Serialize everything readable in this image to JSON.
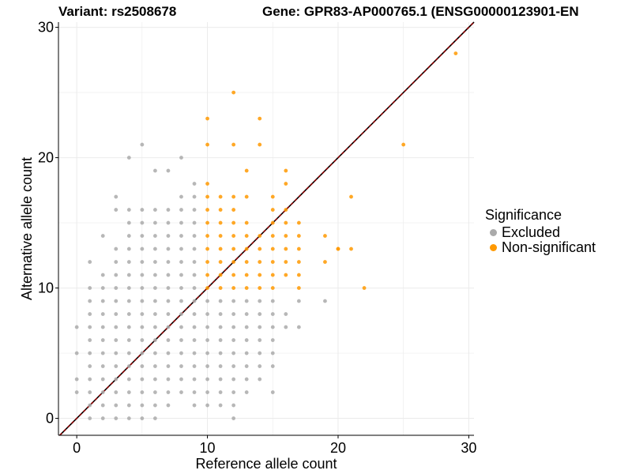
{
  "title_left": "Variant: rs2508678",
  "title_right": "Gene: GPR83-AP000765.1 (ENSG00000123901-EN",
  "chart_data": {
    "type": "scatter",
    "xlabel": "Reference allele count",
    "ylabel": "Alternative allele count",
    "xlim": [
      -1.4,
      30.4
    ],
    "ylim": [
      -1.3,
      30.4
    ],
    "x_ticks": [
      0,
      10,
      20,
      30
    ],
    "y_ticks": [
      0,
      10,
      20,
      30
    ],
    "grid": true,
    "reference_line": "y = x (dashed, dark red)",
    "legend_title": "Significance",
    "legend_placement": "right",
    "series": [
      {
        "name": "Excluded",
        "color": "#aaaaaa",
        "points": [
          [
            0,
            2
          ],
          [
            0,
            3
          ],
          [
            0,
            5
          ],
          [
            0,
            7
          ],
          [
            1,
            0
          ],
          [
            1,
            1
          ],
          [
            1,
            2
          ],
          [
            1,
            3
          ],
          [
            1,
            4
          ],
          [
            1,
            5
          ],
          [
            1,
            6
          ],
          [
            1,
            7
          ],
          [
            1,
            8
          ],
          [
            1,
            9
          ],
          [
            1,
            10
          ],
          [
            1,
            12
          ],
          [
            2,
            0
          ],
          [
            2,
            1
          ],
          [
            2,
            2
          ],
          [
            2,
            3
          ],
          [
            2,
            4
          ],
          [
            2,
            5
          ],
          [
            2,
            6
          ],
          [
            2,
            7
          ],
          [
            2,
            8
          ],
          [
            2,
            9
          ],
          [
            2,
            10
          ],
          [
            2,
            11
          ],
          [
            2,
            14
          ],
          [
            3,
            0
          ],
          [
            3,
            1
          ],
          [
            3,
            2
          ],
          [
            3,
            3
          ],
          [
            3,
            4
          ],
          [
            3,
            5
          ],
          [
            3,
            6
          ],
          [
            3,
            7
          ],
          [
            3,
            8
          ],
          [
            3,
            9
          ],
          [
            3,
            10
          ],
          [
            3,
            11
          ],
          [
            3,
            12
          ],
          [
            3,
            13
          ],
          [
            3,
            16
          ],
          [
            3,
            17
          ],
          [
            4,
            0
          ],
          [
            4,
            1
          ],
          [
            4,
            2
          ],
          [
            4,
            3
          ],
          [
            4,
            4
          ],
          [
            4,
            5
          ],
          [
            4,
            6
          ],
          [
            4,
            7
          ],
          [
            4,
            8
          ],
          [
            4,
            9
          ],
          [
            4,
            10
          ],
          [
            4,
            11
          ],
          [
            4,
            12
          ],
          [
            4,
            13
          ],
          [
            4,
            14
          ],
          [
            4,
            15
          ],
          [
            4,
            16
          ],
          [
            4,
            20
          ],
          [
            5,
            0
          ],
          [
            5,
            1
          ],
          [
            5,
            2
          ],
          [
            5,
            3
          ],
          [
            5,
            4
          ],
          [
            5,
            5
          ],
          [
            5,
            6
          ],
          [
            5,
            7
          ],
          [
            5,
            8
          ],
          [
            5,
            9
          ],
          [
            5,
            10
          ],
          [
            5,
            11
          ],
          [
            5,
            12
          ],
          [
            5,
            13
          ],
          [
            5,
            14
          ],
          [
            5,
            15
          ],
          [
            5,
            16
          ],
          [
            5,
            21
          ],
          [
            6,
            0
          ],
          [
            6,
            1
          ],
          [
            6,
            2
          ],
          [
            6,
            3
          ],
          [
            6,
            4
          ],
          [
            6,
            5
          ],
          [
            6,
            6
          ],
          [
            6,
            7
          ],
          [
            6,
            8
          ],
          [
            6,
            9
          ],
          [
            6,
            10
          ],
          [
            6,
            11
          ],
          [
            6,
            12
          ],
          [
            6,
            13
          ],
          [
            6,
            14
          ],
          [
            6,
            15
          ],
          [
            6,
            16
          ],
          [
            6,
            19
          ],
          [
            7,
            1
          ],
          [
            7,
            2
          ],
          [
            7,
            3
          ],
          [
            7,
            4
          ],
          [
            7,
            5
          ],
          [
            7,
            6
          ],
          [
            7,
            7
          ],
          [
            7,
            8
          ],
          [
            7,
            9
          ],
          [
            7,
            10
          ],
          [
            7,
            11
          ],
          [
            7,
            12
          ],
          [
            7,
            13
          ],
          [
            7,
            14
          ],
          [
            7,
            15
          ],
          [
            7,
            16
          ],
          [
            7,
            19
          ],
          [
            8,
            2
          ],
          [
            8,
            3
          ],
          [
            8,
            4
          ],
          [
            8,
            5
          ],
          [
            8,
            6
          ],
          [
            8,
            7
          ],
          [
            8,
            8
          ],
          [
            8,
            9
          ],
          [
            8,
            10
          ],
          [
            8,
            11
          ],
          [
            8,
            12
          ],
          [
            8,
            13
          ],
          [
            8,
            14
          ],
          [
            8,
            15
          ],
          [
            8,
            16
          ],
          [
            8,
            17
          ],
          [
            8,
            20
          ],
          [
            9,
            1
          ],
          [
            9,
            2
          ],
          [
            9,
            3
          ],
          [
            9,
            4
          ],
          [
            9,
            5
          ],
          [
            9,
            6
          ],
          [
            9,
            7
          ],
          [
            9,
            8
          ],
          [
            9,
            9
          ],
          [
            9,
            10
          ],
          [
            9,
            11
          ],
          [
            9,
            12
          ],
          [
            9,
            13
          ],
          [
            9,
            14
          ],
          [
            9,
            15
          ],
          [
            9,
            16
          ],
          [
            9,
            17
          ],
          [
            9,
            18
          ],
          [
            10,
            1
          ],
          [
            10,
            2
          ],
          [
            10,
            3
          ],
          [
            10,
            4
          ],
          [
            10,
            5
          ],
          [
            10,
            6
          ],
          [
            10,
            7
          ],
          [
            10,
            8
          ],
          [
            10,
            9
          ],
          [
            11,
            1
          ],
          [
            11,
            2
          ],
          [
            11,
            3
          ],
          [
            11,
            4
          ],
          [
            11,
            5
          ],
          [
            11,
            6
          ],
          [
            11,
            7
          ],
          [
            11,
            8
          ],
          [
            11,
            9
          ],
          [
            12,
            0
          ],
          [
            12,
            1
          ],
          [
            12,
            2
          ],
          [
            12,
            3
          ],
          [
            12,
            4
          ],
          [
            12,
            5
          ],
          [
            12,
            6
          ],
          [
            12,
            7
          ],
          [
            12,
            8
          ],
          [
            12,
            9
          ],
          [
            13,
            2
          ],
          [
            13,
            3
          ],
          [
            13,
            4
          ],
          [
            13,
            5
          ],
          [
            13,
            6
          ],
          [
            13,
            7
          ],
          [
            13,
            8
          ],
          [
            13,
            9
          ],
          [
            14,
            3
          ],
          [
            14,
            4
          ],
          [
            14,
            5
          ],
          [
            14,
            6
          ],
          [
            14,
            7
          ],
          [
            14,
            8
          ],
          [
            14,
            9
          ],
          [
            15,
            2
          ],
          [
            15,
            4
          ],
          [
            15,
            5
          ],
          [
            15,
            6
          ],
          [
            15,
            7
          ],
          [
            15,
            8
          ],
          [
            15,
            9
          ],
          [
            16,
            7
          ],
          [
            16,
            8
          ],
          [
            17,
            7
          ],
          [
            17,
            9
          ],
          [
            19,
            9
          ]
        ]
      },
      {
        "name": "Non-significant",
        "color": "#ff9900",
        "points": [
          [
            10,
            10
          ],
          [
            10,
            11
          ],
          [
            10,
            12
          ],
          [
            10,
            13
          ],
          [
            10,
            14
          ],
          [
            10,
            15
          ],
          [
            10,
            16
          ],
          [
            10,
            17
          ],
          [
            10,
            18
          ],
          [
            10,
            21
          ],
          [
            10,
            23
          ],
          [
            11,
            10
          ],
          [
            11,
            11
          ],
          [
            11,
            12
          ],
          [
            11,
            13
          ],
          [
            11,
            14
          ],
          [
            11,
            15
          ],
          [
            11,
            16
          ],
          [
            11,
            17
          ],
          [
            12,
            10
          ],
          [
            12,
            11
          ],
          [
            12,
            12
          ],
          [
            12,
            13
          ],
          [
            12,
            14
          ],
          [
            12,
            15
          ],
          [
            12,
            16
          ],
          [
            12,
            17
          ],
          [
            12,
            21
          ],
          [
            12,
            25
          ],
          [
            13,
            10
          ],
          [
            13,
            11
          ],
          [
            13,
            12
          ],
          [
            13,
            13
          ],
          [
            13,
            14
          ],
          [
            13,
            15
          ],
          [
            13,
            17
          ],
          [
            13,
            19
          ],
          [
            14,
            10
          ],
          [
            14,
            11
          ],
          [
            14,
            12
          ],
          [
            14,
            13
          ],
          [
            14,
            14
          ],
          [
            14,
            21
          ],
          [
            14,
            23
          ],
          [
            15,
            10
          ],
          [
            15,
            11
          ],
          [
            15,
            12
          ],
          [
            15,
            13
          ],
          [
            15,
            14
          ],
          [
            15,
            15
          ],
          [
            15,
            16
          ],
          [
            15,
            17
          ],
          [
            16,
            11
          ],
          [
            16,
            12
          ],
          [
            16,
            13
          ],
          [
            16,
            14
          ],
          [
            16,
            15
          ],
          [
            16,
            16
          ],
          [
            16,
            18
          ],
          [
            16,
            19
          ],
          [
            17,
            10
          ],
          [
            17,
            11
          ],
          [
            17,
            12
          ],
          [
            17,
            13
          ],
          [
            17,
            14
          ],
          [
            17,
            15
          ],
          [
            19,
            12
          ],
          [
            19,
            14
          ],
          [
            20,
            13
          ],
          [
            20,
            13
          ],
          [
            21,
            13
          ],
          [
            21,
            17
          ],
          [
            22,
            10
          ],
          [
            25,
            21
          ],
          [
            29,
            28
          ]
        ]
      }
    ]
  }
}
